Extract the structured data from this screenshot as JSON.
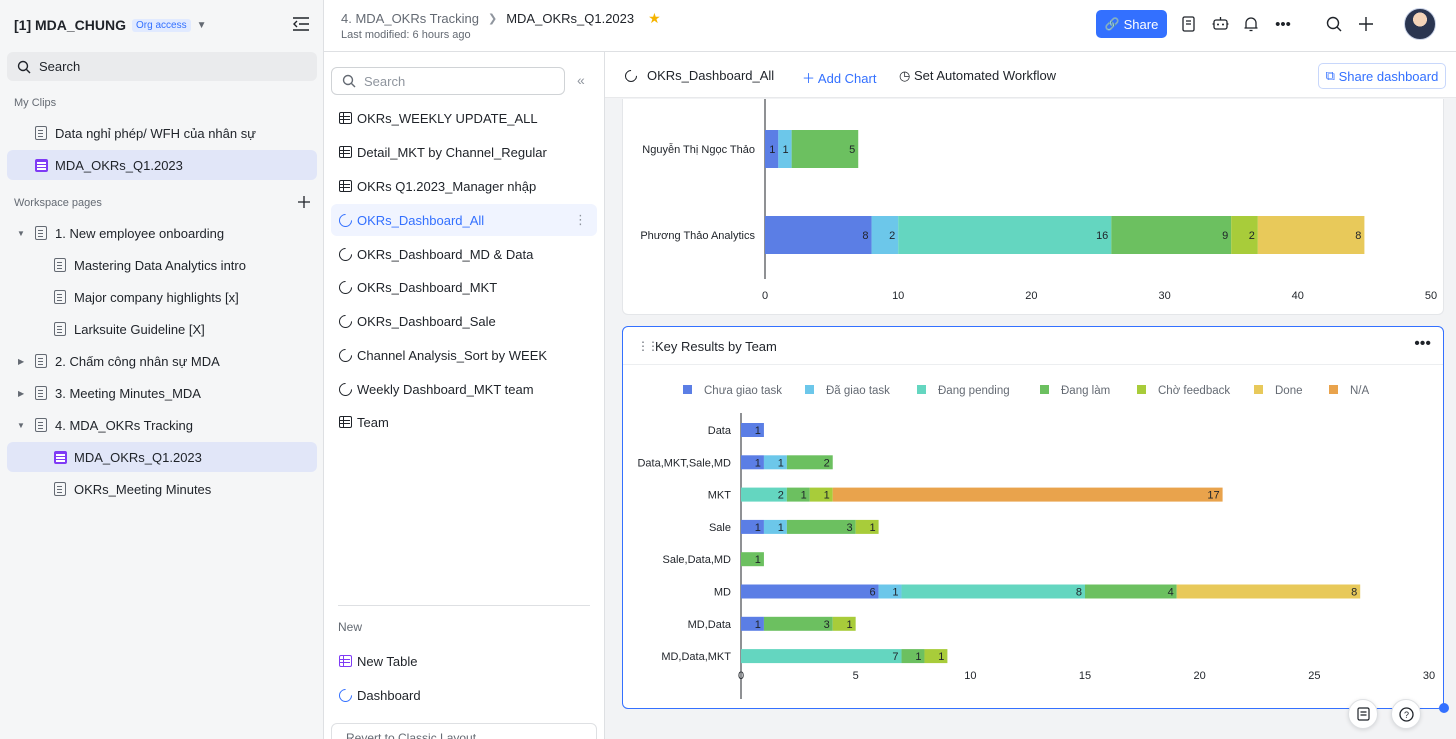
{
  "workspace": {
    "title": "[1] MDA_CHUNG",
    "badge": "Org access"
  },
  "sidebar": {
    "search_label": "Search",
    "my_clips_label": "My Clips",
    "clips": [
      {
        "label": "Data nghỉ phép/ WFH của nhân sự",
        "type": "doc"
      },
      {
        "label": "MDA_OKRs_Q1.2023",
        "type": "base"
      }
    ],
    "workspace_pages_label": "Workspace pages",
    "pages": [
      {
        "label": "1. New employee onboarding",
        "level": 0,
        "expanded": true
      },
      {
        "label": "Mastering Data Analytics intro",
        "level": 1
      },
      {
        "label": "Major company highlights [x]",
        "level": 1
      },
      {
        "label": "Larksuite Guideline [X]",
        "level": 1
      },
      {
        "label": "2. Chấm công nhân sự MDA",
        "level": 0,
        "expanded": false
      },
      {
        "label": "3. Meeting Minutes_MDA",
        "level": 0,
        "expanded": false
      },
      {
        "label": "4. MDA_OKRs Tracking",
        "level": 0,
        "expanded": true
      },
      {
        "label": "MDA_OKRs_Q1.2023",
        "level": 1,
        "type": "base",
        "active": true
      },
      {
        "label": "OKRs_Meeting Minutes",
        "level": 1
      }
    ]
  },
  "header": {
    "breadcrumb_parent": "4. MDA_OKRs Tracking",
    "breadcrumb_current": "MDA_OKRs_Q1.2023",
    "last_modified": "Last modified: 6 hours ago",
    "share_label": "Share"
  },
  "tables": {
    "search_placeholder": "Search",
    "items": [
      {
        "label": "OKRs_WEEKLY UPDATE_ALL",
        "type": "table"
      },
      {
        "label": "Detail_MKT by Channel_Regular",
        "type": "table"
      },
      {
        "label": "OKRs Q1.2023_Manager nhập",
        "type": "table"
      },
      {
        "label": "OKRs_Dashboard_All",
        "type": "dashboard",
        "active": true
      },
      {
        "label": "OKRs_Dashboard_MD & Data",
        "type": "dashboard"
      },
      {
        "label": "OKRs_Dashboard_MKT",
        "type": "dashboard"
      },
      {
        "label": "OKRs_Dashboard_Sale",
        "type": "dashboard"
      },
      {
        "label": "Channel Analysis_Sort by WEEK",
        "type": "dashboard"
      },
      {
        "label": "Weekly Dashboard_MKT team",
        "type": "dashboard"
      },
      {
        "label": "Team",
        "type": "table"
      }
    ],
    "new_label": "New",
    "new_table_label": "New Table",
    "new_dashboard_label": "Dashboard",
    "revert_label": "Revert to Classic Layout"
  },
  "dashboard": {
    "title": "OKRs_Dashboard_All",
    "add_chart_label": "Add Chart",
    "automation_label": "Set Automated Workflow",
    "share_dashboard_label": "Share dashboard"
  },
  "colors": {
    "accent": "#3370ff",
    "series": [
      "#5b7ee5",
      "#6cc7ea",
      "#64d6c0",
      "#6cc060",
      "#a8cc3a",
      "#e8c95a",
      "#e9a34c"
    ]
  },
  "chart_data": [
    {
      "type": "bar",
      "orientation": "horizontal",
      "stacked": true,
      "title": "",
      "categories": [
        "Nguyễn Thị Ngọc Thảo",
        "Phương Thảo Analytics"
      ],
      "series": [
        {
          "values": [
            1,
            8
          ]
        },
        {
          "values": [
            1,
            2
          ]
        },
        {
          "values": [
            0,
            16
          ]
        },
        {
          "values": [
            5,
            9
          ]
        },
        {
          "values": [
            0,
            2
          ]
        },
        {
          "values": [
            0,
            8
          ]
        }
      ],
      "xlim": [
        0,
        50
      ],
      "xticks": [
        0,
        10,
        20,
        30,
        40,
        50
      ]
    },
    {
      "type": "bar",
      "orientation": "horizontal",
      "stacked": true,
      "title": "Key Results by Team",
      "legend_position": "top",
      "categories": [
        "Data",
        "Data,MKT,Sale,MD",
        "MKT",
        "Sale",
        "Sale,Data,MD",
        "MD",
        "MD,Data",
        "MD,Data,MKT"
      ],
      "series": [
        {
          "name": "Chưa giao task",
          "values": [
            1,
            1,
            0,
            1,
            0,
            6,
            1,
            0
          ]
        },
        {
          "name": "Đã giao task",
          "values": [
            0,
            1,
            0,
            1,
            0,
            1,
            0,
            0
          ]
        },
        {
          "name": "Đang pending",
          "values": [
            0,
            0,
            2,
            0,
            0,
            8,
            0,
            7
          ]
        },
        {
          "name": "Đang làm",
          "values": [
            0,
            2,
            1,
            3,
            1,
            4,
            3,
            1
          ]
        },
        {
          "name": "Chờ feedback",
          "values": [
            0,
            0,
            1,
            1,
            0,
            0,
            1,
            1
          ]
        },
        {
          "name": "Done",
          "values": [
            0,
            0,
            0,
            0,
            0,
            8,
            0,
            0
          ]
        },
        {
          "name": "N/A",
          "values": [
            0,
            0,
            17,
            0,
            0,
            0,
            0,
            0
          ]
        }
      ],
      "xlim": [
        0,
        30
      ],
      "xticks": [
        0,
        5,
        10,
        15,
        20,
        25,
        30
      ]
    }
  ]
}
